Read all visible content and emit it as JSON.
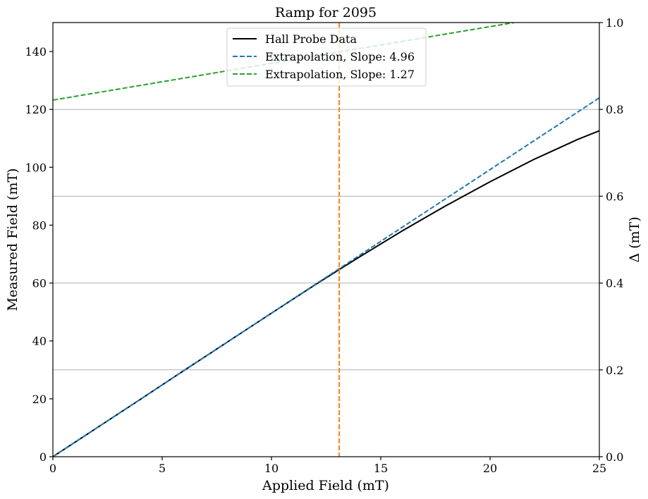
{
  "chart_data": {
    "type": "line",
    "title": "Ramp for 2095",
    "xlabel": "Applied Field (mT)",
    "ylabel": "Measured Field (mT)",
    "ylabel_right": "Δ (mT)",
    "xlim": [
      0,
      25
    ],
    "ylim": [
      0,
      150
    ],
    "ylim_right": [
      0,
      1.0
    ],
    "x_ticks": [
      "0",
      "5",
      "10",
      "15",
      "20",
      "25"
    ],
    "y_ticks": [
      "0",
      "20",
      "40",
      "60",
      "80",
      "100",
      "120",
      "140"
    ],
    "y_ticks_right": [
      "0.0",
      "0.2",
      "0.4",
      "0.6",
      "0.8",
      "1.0"
    ],
    "grid": "horizontal, right axis",
    "legend_position": "upper center",
    "series": [
      {
        "name": "Hall Probe Data",
        "color": "#000000",
        "style": "solid",
        "axis": "left",
        "x": [
          0,
          2,
          4,
          6,
          8,
          10,
          12,
          13,
          14,
          16,
          18,
          20,
          22,
          24,
          25
        ],
        "y": [
          0,
          9.9,
          19.8,
          29.8,
          39.7,
          49.6,
          59.4,
          64.2,
          68.9,
          78.1,
          86.8,
          95.0,
          102.7,
          109.6,
          112.6
        ]
      },
      {
        "name": "Extrapolation, Slope: 4.96",
        "color": "#1f77b4",
        "style": "dashed",
        "axis": "left",
        "x": [
          0,
          25
        ],
        "y": [
          0,
          124
        ]
      },
      {
        "name": "Extrapolation, Slope: 1.27",
        "color": "#2ca02c",
        "style": "dashed",
        "axis": "left",
        "x": [
          0,
          21.1
        ],
        "y": [
          123.2,
          150
        ]
      }
    ],
    "vertical_line": {
      "x": 13.1,
      "color": "#ff7f0e",
      "style": "dashed"
    }
  }
}
